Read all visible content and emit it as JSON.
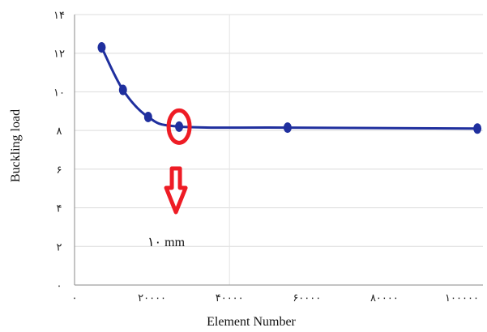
{
  "chart_data": {
    "type": "line",
    "title": "",
    "xlabel": "Element Number",
    "ylabel": "Buckling load",
    "xlim": [
      0,
      100000
    ],
    "ylim": [
      0,
      14
    ],
    "x_ticks": [
      0,
      20000,
      40000,
      60000,
      80000,
      100000
    ],
    "x_tick_labels": [
      "۰",
      "۲۰۰۰۰",
      "۴۰۰۰۰",
      "۶۰۰۰۰",
      "۸۰۰۰۰",
      "۱۰۰۰۰۰"
    ],
    "y_ticks": [
      0,
      2,
      4,
      6,
      8,
      10,
      12,
      14
    ],
    "y_tick_labels": [
      "۰",
      "۲",
      "۴",
      "۶",
      "۸",
      "۱۰",
      "۱۲",
      "۱۴"
    ],
    "grid": "vertical and horizontal",
    "series": [
      {
        "color": "#1f2f9e",
        "x": [
          7000,
          12500,
          19000,
          27000,
          55000,
          104000
        ],
        "y": [
          12.3,
          10.1,
          8.7,
          8.2,
          8.15,
          8.1
        ]
      }
    ],
    "annotations": {
      "highlight_point_index": 3,
      "highlight_color": "#ee1c25",
      "arrow_direction": "down",
      "note": "۱۰ mm"
    }
  }
}
